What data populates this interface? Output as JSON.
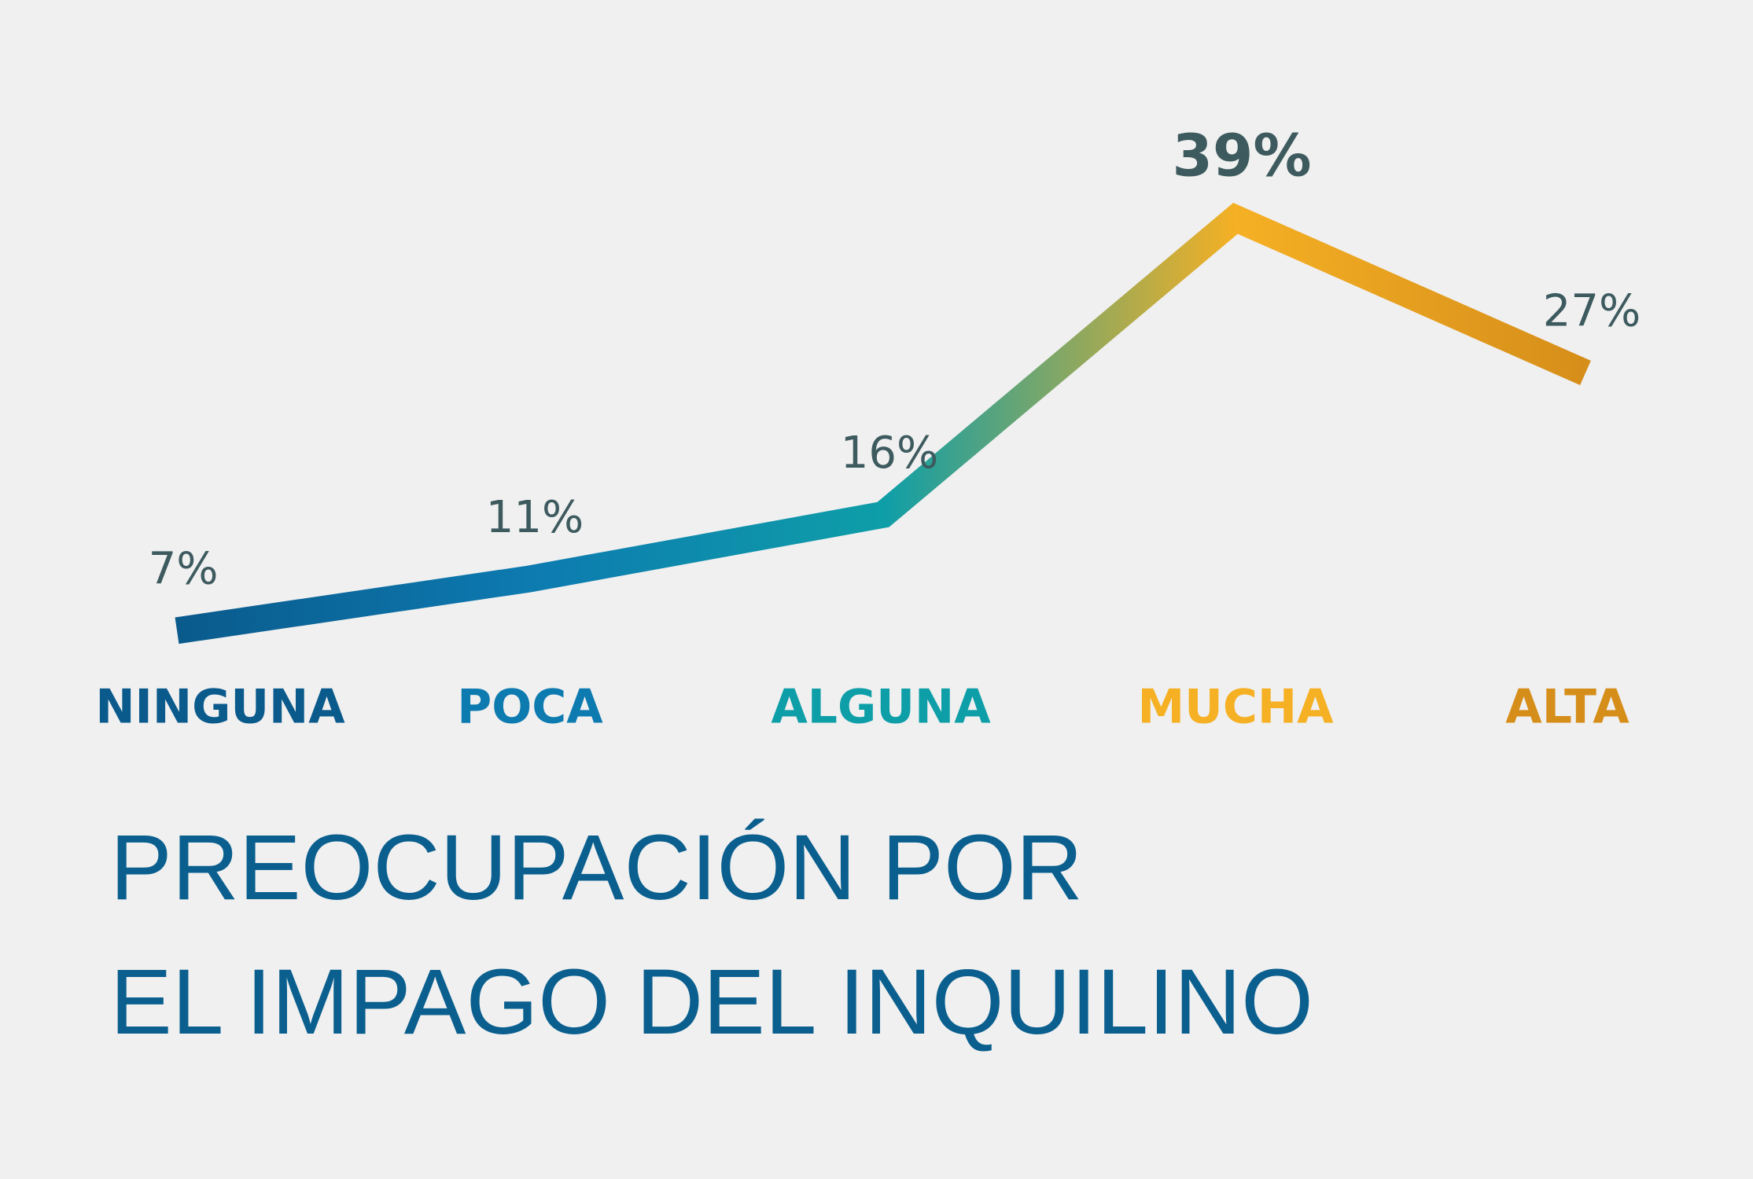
{
  "chart_data": {
    "type": "line",
    "title": [
      "PREOCUPACIÓN POR",
      "EL IMPAGO DEL INQUILINO"
    ],
    "categories": [
      "NINGUNA",
      "POCA",
      "ALGUNA",
      "MUCHA",
      "ALTA"
    ],
    "colors": [
      "#0a5a8c",
      "#0d7ab0",
      "#0e9ea8",
      "#f5b024",
      "#d68e1a"
    ],
    "values": [
      7,
      11,
      16,
      39,
      27
    ],
    "value_labels": [
      "7%",
      "11%",
      "16%",
      "39%",
      "27%"
    ]
  }
}
